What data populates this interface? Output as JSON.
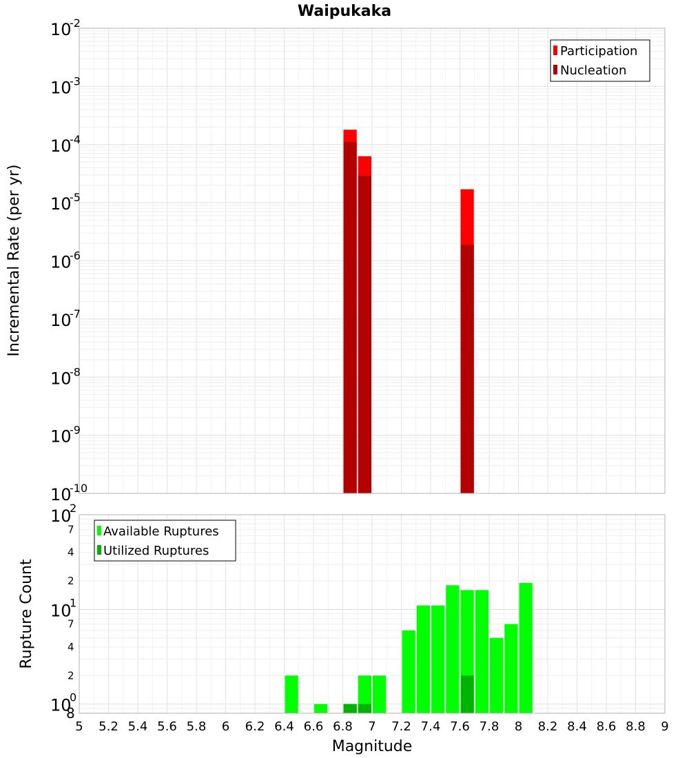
{
  "chart_data": [
    {
      "type": "bar",
      "title": "Waipukaka",
      "xlabel": "",
      "ylabel": "Incremental Rate (per yr)",
      "yscale": "log",
      "ylim": [
        1e-10,
        0.01
      ],
      "xlim": [
        5,
        9
      ],
      "bin_width": 0.1,
      "y_tick_bases": [
        "10",
        "10",
        "10",
        "10",
        "10",
        "10",
        "10",
        "10",
        "10"
      ],
      "y_tick_exponents": [
        "-2",
        "-3",
        "-4",
        "-5",
        "-6",
        "-7",
        "-8",
        "-9",
        "-10"
      ],
      "legend_position": "top-right",
      "grid": true,
      "series": [
        {
          "name": "Participation",
          "color": "#ff0000",
          "x": [
            6.85,
            6.95,
            7.65
          ],
          "values": [
            0.00018,
            6.3e-05,
            1.7e-05
          ]
        },
        {
          "name": "Nucleation",
          "color": "#b30000",
          "x": [
            6.85,
            6.95,
            7.65
          ],
          "values": [
            0.00011,
            2.9e-05,
            1.9e-06
          ]
        }
      ]
    },
    {
      "type": "bar",
      "xlabel": "Magnitude",
      "ylabel": "Rupture Count",
      "yscale": "log",
      "ylim": [
        0.8,
        100
      ],
      "xlim": [
        5,
        9
      ],
      "bin_width": 0.1,
      "x_tick_labels": [
        "5",
        "5.2",
        "5.4",
        "5.6",
        "5.8",
        "6",
        "6.2",
        "6.4",
        "6.6",
        "6.8",
        "7",
        "7.2",
        "7.4",
        "7.6",
        "7.8",
        "8",
        "8.2",
        "8.4",
        "8.6",
        "8.8",
        "9"
      ],
      "y_major_ticks": [
        {
          "value": 100,
          "base": "10",
          "exp": "2"
        },
        {
          "value": 10,
          "base": "10",
          "exp": "1"
        },
        {
          "value": 1,
          "base": "10",
          "exp": "0"
        }
      ],
      "y_minor_ticks": [
        {
          "value": 70,
          "label": "7"
        },
        {
          "value": 40,
          "label": "4"
        },
        {
          "value": 20,
          "label": "2"
        },
        {
          "value": 7,
          "label": "7"
        },
        {
          "value": 4,
          "label": "4"
        },
        {
          "value": 2,
          "label": "2"
        },
        {
          "value": 0.8,
          "label": "8"
        }
      ],
      "legend_position": "top-left",
      "grid": true,
      "series": [
        {
          "name": "Available Ruptures",
          "color": "#00ff00",
          "x": [
            6.45,
            6.65,
            6.85,
            6.95,
            7.05,
            7.25,
            7.35,
            7.45,
            7.55,
            7.65,
            7.75,
            7.85,
            7.95,
            8.05
          ],
          "values": [
            2,
            1,
            1,
            2,
            2,
            6,
            11,
            11,
            18,
            16,
            16,
            5,
            7,
            19
          ]
        },
        {
          "name": "Utilized Ruptures",
          "color": "#00b300",
          "x": [
            6.85,
            6.95,
            7.65
          ],
          "values": [
            1,
            1,
            2
          ]
        }
      ]
    }
  ]
}
